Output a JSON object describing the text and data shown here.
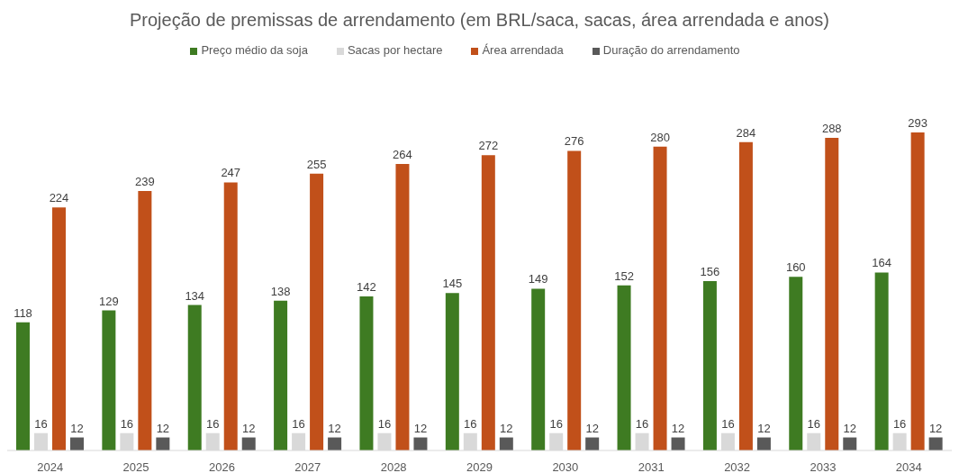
{
  "chart_data": {
    "type": "bar",
    "title": "Projeção de premissas de arrendamento (em BRL/saca, sacas, área arrendada e anos)",
    "categories": [
      "2024",
      "2025",
      "2026",
      "2027",
      "2028",
      "2029",
      "2030",
      "2031",
      "2032",
      "2033",
      "2034"
    ],
    "series": [
      {
        "name": "Preço médio da soja",
        "color": "#3e7b22",
        "values": [
          118,
          129,
          134,
          138,
          142,
          145,
          149,
          152,
          156,
          160,
          164
        ]
      },
      {
        "name": "Sacas por hectare",
        "color": "#d9d9d9",
        "values": [
          16,
          16,
          16,
          16,
          16,
          16,
          16,
          16,
          16,
          16,
          16
        ]
      },
      {
        "name": "Área arrendada",
        "color": "#c1501a",
        "values": [
          224,
          239,
          247,
          255,
          264,
          272,
          276,
          280,
          284,
          288,
          293
        ]
      },
      {
        "name": "Duração do arrendamento",
        "color": "#595959",
        "values": [
          12,
          12,
          12,
          12,
          12,
          12,
          12,
          12,
          12,
          12,
          12
        ]
      }
    ],
    "data_labels": true,
    "legend": "top"
  }
}
